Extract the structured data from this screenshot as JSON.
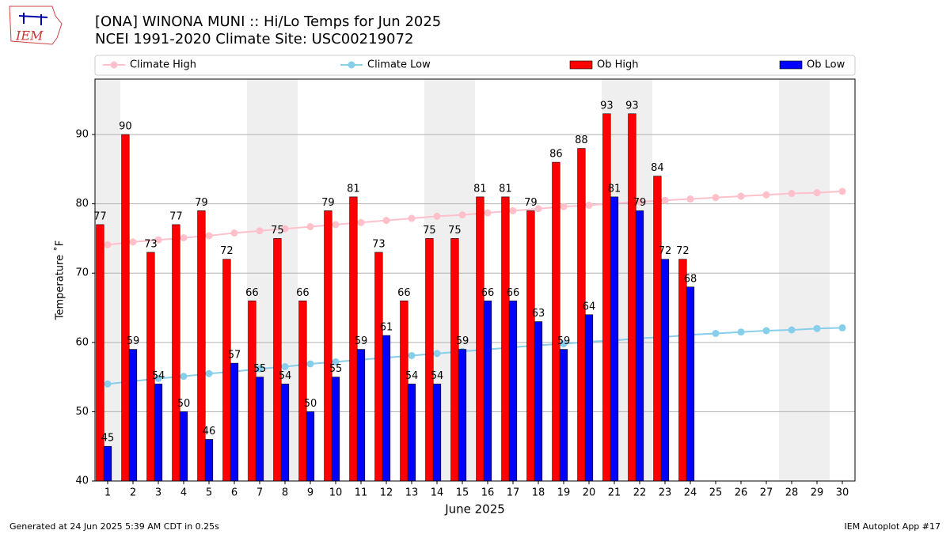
{
  "logo_text": "IEM",
  "footer_left": "Generated at 24 Jun 2025 5:39 AM CDT in 0.25s",
  "footer_right": "IEM Autoplot App #17",
  "chart_data": {
    "type": "bar",
    "title": "[ONA] WINONA MUNI :: Hi/Lo Temps for Jun 2025",
    "subtitle": "NCEI 1991-2020 Climate Site: USC00219072",
    "x_label": "June 2025",
    "y_label": "Temperature ˚F",
    "x": [
      1,
      2,
      3,
      4,
      5,
      6,
      7,
      8,
      9,
      10,
      11,
      12,
      13,
      14,
      15,
      16,
      17,
      18,
      19,
      20,
      21,
      22,
      23,
      24,
      25,
      26,
      27,
      28,
      29,
      30
    ],
    "shaded_days": [
      1,
      7,
      8,
      14,
      15,
      21,
      22,
      28,
      29
    ],
    "series": [
      {
        "name": "Climate High",
        "type": "line",
        "color": "#ffc0cb",
        "values": [
          74.1,
          74.5,
          74.8,
          75.1,
          75.4,
          75.8,
          76.1,
          76.4,
          76.7,
          77.0,
          77.3,
          77.6,
          77.9,
          78.2,
          78.4,
          78.7,
          79.0,
          79.3,
          79.6,
          79.8,
          80.1,
          80.3,
          80.5,
          80.7,
          80.9,
          81.1,
          81.3,
          81.5,
          81.6,
          81.8
        ]
      },
      {
        "name": "Climate Low",
        "type": "line",
        "color": "#87ceeb",
        "values": [
          54.0,
          54.4,
          54.8,
          55.1,
          55.5,
          55.8,
          56.2,
          56.5,
          56.9,
          57.2,
          57.5,
          57.8,
          58.1,
          58.4,
          58.7,
          59.0,
          59.3,
          59.6,
          59.8,
          60.1,
          60.3,
          60.6,
          60.8,
          61.1,
          61.3,
          61.5,
          61.7,
          61.8,
          62.0,
          62.1
        ]
      },
      {
        "name": "Ob High",
        "type": "bar",
        "color": "#ff0000",
        "values": [
          77,
          90,
          73,
          77,
          79,
          72,
          66,
          75,
          66,
          79,
          81,
          73,
          66,
          75,
          75,
          81,
          81,
          79,
          86,
          88,
          93,
          93,
          84,
          72,
          null,
          null,
          null,
          null,
          null,
          null
        ]
      },
      {
        "name": "Ob Low",
        "type": "bar",
        "color": "#0000ff",
        "values": [
          45,
          59,
          54,
          50,
          46,
          57,
          55,
          54,
          50,
          55,
          59,
          61,
          54,
          54,
          59,
          66,
          66,
          63,
          59,
          64,
          81,
          79,
          72,
          68,
          null,
          null,
          null,
          null,
          null,
          null
        ]
      }
    ],
    "xlim": [
      0.5,
      30.5
    ],
    "ylim": [
      40,
      98
    ],
    "yticks": [
      40,
      50,
      60,
      70,
      80,
      90
    ],
    "grid": true
  }
}
